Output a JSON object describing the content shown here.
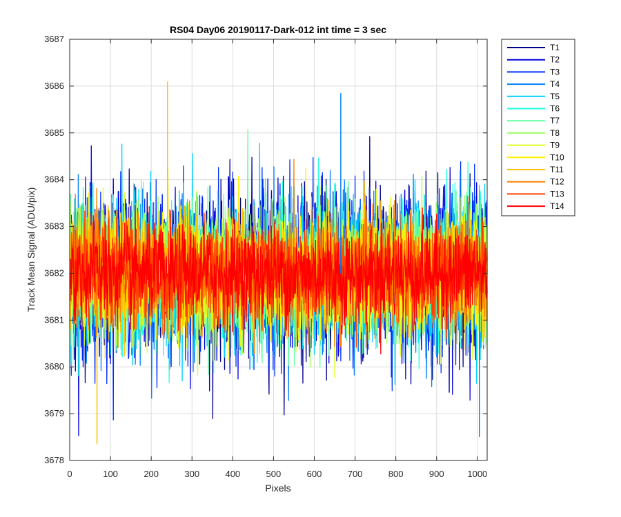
{
  "chart_data": {
    "type": "line",
    "title": "RS04 Day06 20190117-Dark-012 int time = 3 sec",
    "xlabel": "Pixels",
    "ylabel": "Track Mean Signal (ADU/pix)",
    "xlim": [
      0,
      1024
    ],
    "ylim": [
      3678,
      3687
    ],
    "xticks": [
      0,
      100,
      200,
      300,
      400,
      500,
      600,
      700,
      800,
      900,
      1000
    ],
    "yticks": [
      3678,
      3679,
      3680,
      3681,
      3682,
      3683,
      3684,
      3685,
      3686,
      3687
    ],
    "grid": true,
    "legend_position": "outside-top-right",
    "x_range": [
      1,
      1024
    ],
    "series_mean": 3682.0,
    "series_typical_spread": [
      3680.0,
      3684.5
    ],
    "series": [
      {
        "name": "T1",
        "color": "#00008F"
      },
      {
        "name": "T2",
        "color": "#0000DF"
      },
      {
        "name": "T3",
        "color": "#0030FF"
      },
      {
        "name": "T4",
        "color": "#0080FF"
      },
      {
        "name": "T5",
        "color": "#00CFFF"
      },
      {
        "name": "T6",
        "color": "#20FFDF"
      },
      {
        "name": "T7",
        "color": "#60FF9F"
      },
      {
        "name": "T8",
        "color": "#9FFF60"
      },
      {
        "name": "T9",
        "color": "#DFFF20"
      },
      {
        "name": "T10",
        "color": "#FFEF00"
      },
      {
        "name": "T11",
        "color": "#FFBF00"
      },
      {
        "name": "T12",
        "color": "#FF8000"
      },
      {
        "name": "T13",
        "color": "#FF4000"
      },
      {
        "name": "T14",
        "color": "#FF0000"
      }
    ],
    "annotated_extremes": [
      {
        "x": 240,
        "y": 3686.1
      },
      {
        "x": 665,
        "y": 3685.85
      },
      {
        "x": 67,
        "y": 3678.35
      },
      {
        "x": 1005,
        "y": 3678.5
      }
    ]
  }
}
